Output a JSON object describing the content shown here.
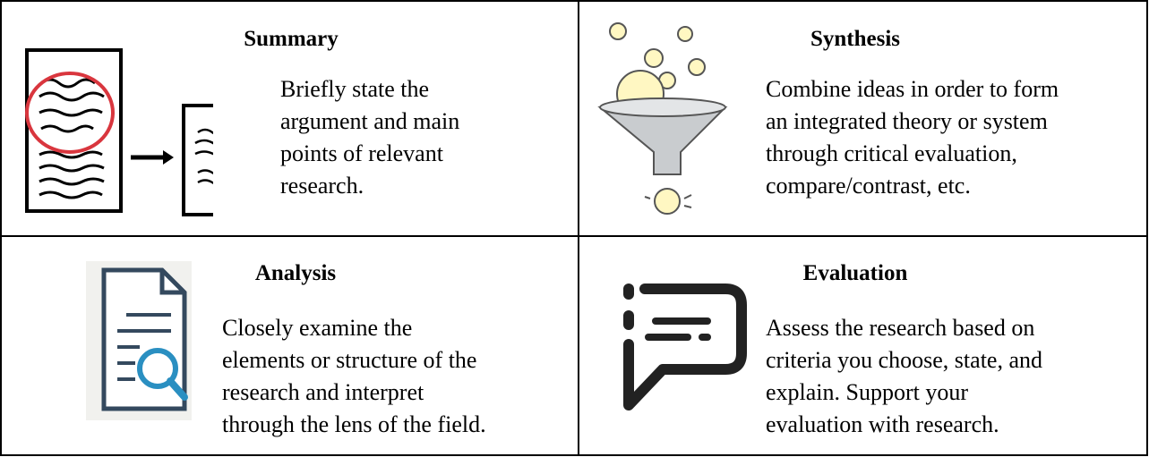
{
  "cells": [
    {
      "title": "Summary",
      "lines": [
        "Briefly state the",
        "argument and main",
        "points of relevant",
        "research."
      ]
    },
    {
      "title": "Synthesis",
      "lines": [
        "Combine ideas in order to form",
        "an integrated theory or system",
        "through critical evaluation,",
        "compare/contrast, etc."
      ]
    },
    {
      "title": "Analysis",
      "lines": [
        "Closely examine the",
        "elements or structure of the",
        "research and interpret",
        "through the lens of the field."
      ]
    },
    {
      "title": "Evaluation",
      "lines": [
        "Assess the research based on",
        "criteria you choose, state, and",
        "explain. Support your",
        "evaluation with research."
      ]
    }
  ]
}
